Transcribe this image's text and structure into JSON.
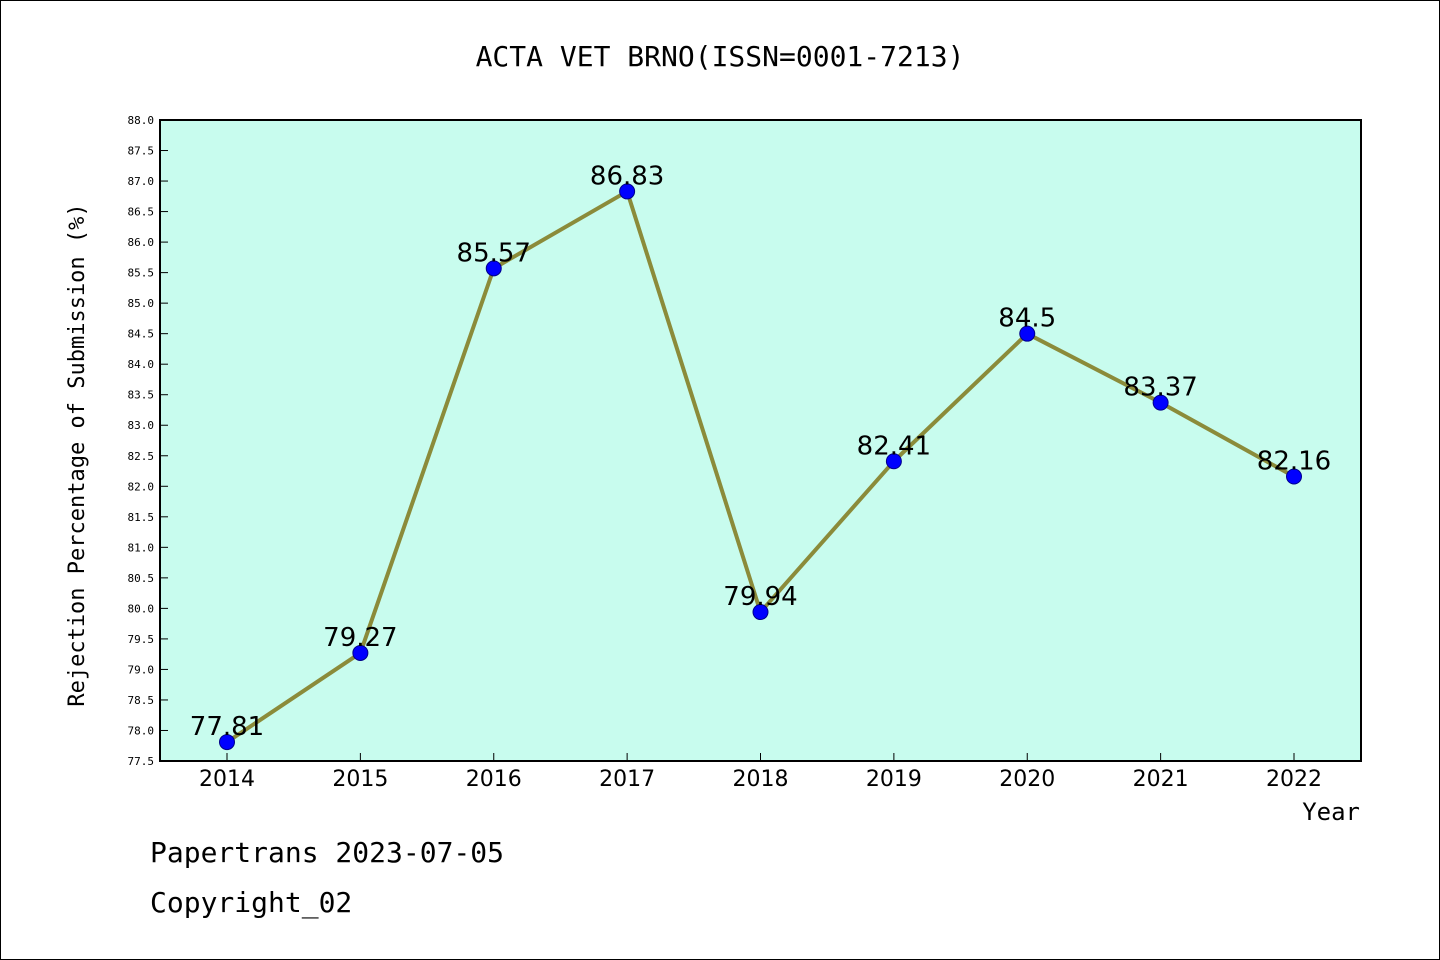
{
  "chart_data": {
    "type": "line",
    "title": "ACTA VET BRNO(ISSN=0001-7213)",
    "xlabel": "Year",
    "ylabel": "Rejection Percentage of Submission (%)",
    "categories": [
      "2014",
      "2015",
      "2016",
      "2017",
      "2018",
      "2019",
      "2020",
      "2021",
      "2022"
    ],
    "values": [
      77.81,
      79.27,
      85.57,
      86.83,
      79.94,
      82.41,
      84.5,
      83.37,
      82.16
    ],
    "data_labels": [
      "77.81",
      "79.27",
      "85.57",
      "86.83",
      "79.94",
      "82.41",
      "84.5",
      "83.37",
      "82.16"
    ],
    "ylim": [
      77.5,
      88.0
    ],
    "yticks": [
      "77.5",
      "78.0",
      "78.5",
      "79.0",
      "79.5",
      "80.0",
      "80.5",
      "81.0",
      "81.5",
      "82.0",
      "82.5",
      "83.0",
      "83.5",
      "84.0",
      "84.5",
      "85.0",
      "85.5",
      "86.0",
      "86.5",
      "87.0",
      "87.5",
      "88.0"
    ],
    "grid": false,
    "colors": {
      "plot_background": "#c8fcee",
      "line": "#8b8b3a",
      "marker": "#0000ff"
    }
  },
  "footer": {
    "line1": "Papertrans 2023-07-05",
    "line2": "Copyright_02"
  }
}
